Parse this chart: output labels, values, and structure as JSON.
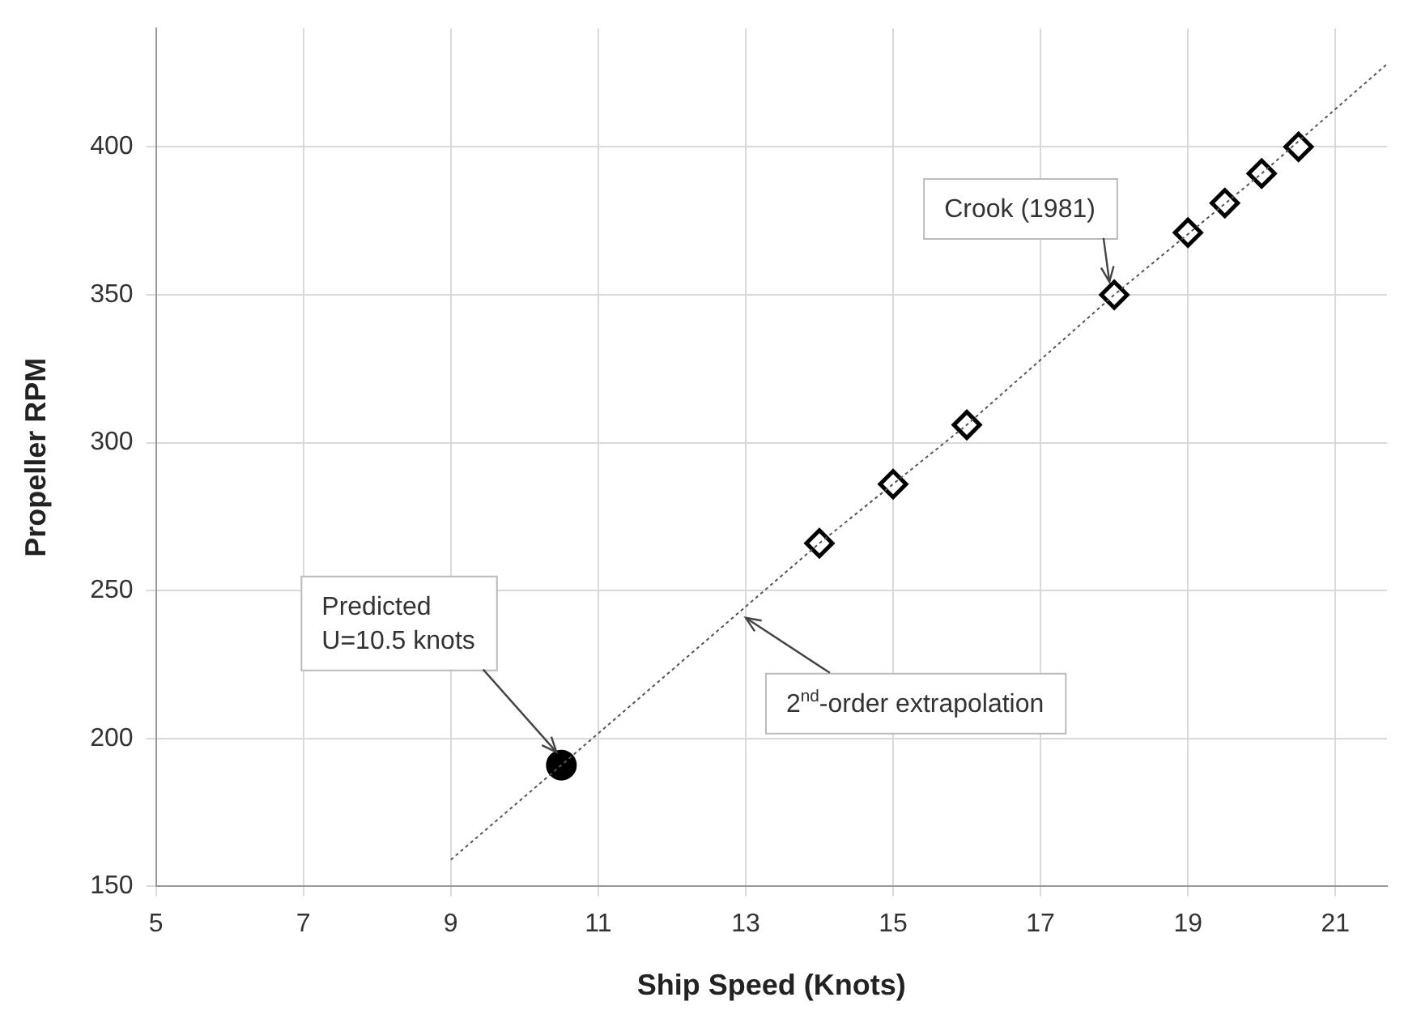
{
  "chart_data": {
    "type": "scatter",
    "xlabel": "Ship Speed (Knots)",
    "ylabel": "Propeller RPM",
    "xlim": [
      5,
      21.7
    ],
    "xticks": [
      5,
      7,
      9,
      11,
      13,
      15,
      17,
      19,
      21
    ],
    "ylim": [
      150,
      440
    ],
    "yticks": [
      150,
      200,
      250,
      300,
      350,
      400
    ],
    "grid": true,
    "legend": false,
    "series": [
      {
        "type": "line",
        "color": "#555555",
        "line_style": "dotted",
        "marker": "none",
        "x": [
          9,
          10.5,
          14,
          16,
          18,
          20,
          21.7
        ],
        "values": [
          159,
          191,
          266,
          306,
          350,
          391,
          428
        ]
      },
      {
        "type": "scatter",
        "color": "#000000",
        "marker": "diamond",
        "x": [
          14,
          15,
          16,
          18,
          19,
          19.5,
          20,
          20.5
        ],
        "values": [
          266,
          286,
          306,
          350,
          371,
          381,
          391,
          400
        ]
      },
      {
        "type": "scatter",
        "color": "#000000",
        "marker": "circle",
        "x": [
          10.5
        ],
        "values": [
          191
        ]
      }
    ],
    "annotations": [
      {
        "text": "Crook (1981)",
        "x": 18,
        "y": 350
      },
      {
        "text": "Predicted\nU=10.5 knots",
        "x": 10.5,
        "y": 191
      },
      {
        "text": "2$^{nd}$-order extrapolation",
        "x": 13,
        "y": 243
      }
    ]
  }
}
